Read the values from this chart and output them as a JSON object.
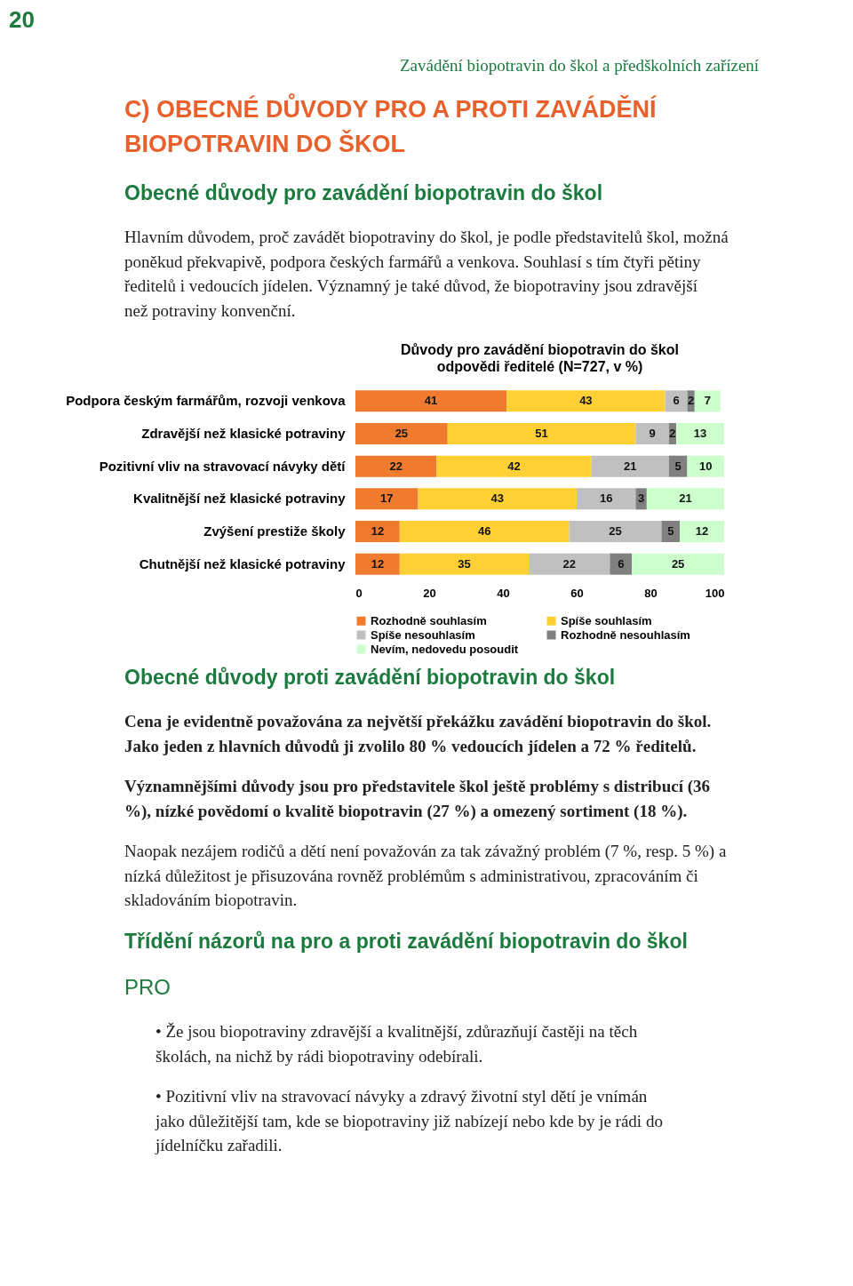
{
  "chart_data": {
    "type": "bar",
    "orientation": "horizontal",
    "stacked": true,
    "title": "Důvody pro zavádění biopotravin do škol",
    "subtitle": "odpovědi ředitelé (N=727, v %)",
    "categories": [
      "Podpora českým farmářům, rozvoji venkova",
      "Zdravější než klasické potraviny",
      "Pozitivní vliv na stravovací návyky dětí",
      "Kvalitnější než klasické potraviny",
      "Zvýšení prestiže školy",
      "Chutnější než klasické potraviny"
    ],
    "series": [
      {
        "name": "Rozhodně souhlasím",
        "color": "#f07b2f",
        "values": [
          41,
          25,
          22,
          17,
          12,
          12
        ]
      },
      {
        "name": "Spíše souhlasím",
        "color": "#ffd035",
        "values": [
          43,
          51,
          42,
          43,
          46,
          35
        ]
      },
      {
        "name": "Spíše nesouhlasím",
        "color": "#c0c0c0",
        "values": [
          6,
          9,
          21,
          16,
          25,
          22
        ]
      },
      {
        "name": "Rozhodně nesouhlasím",
        "color": "#808080",
        "values": [
          2,
          2,
          5,
          3,
          5,
          6
        ]
      },
      {
        "name": "Nevím, nedovedu posoudit",
        "color": "#ccffcc",
        "values": [
          7,
          13,
          10,
          21,
          12,
          25
        ]
      }
    ],
    "xlim": [
      0,
      100
    ],
    "xticks": [
      0,
      20,
      40,
      60,
      80,
      100
    ],
    "grid": false,
    "legend": "bottom",
    "data_labels": true,
    "annotations": [
      "20",
      "Zavádění biopotravin do škol a předškolních zařízení",
      "C) OBECNÉ DŮVODY PRO A PROTI ZAVÁDĚNÍ BIOPOTRAVIN DO ŠKOL",
      "Obecné důvody pro zavádění biopotravin do škol",
      "Hlavním důvodem, proč zavádět biopotraviny do škol, je podle představitelů škol, možná poněkud překvapivě, podpora českých farmářů a venkova. Souhlasí s tím čtyři pětiny ředitelů i vedoucích jídelen. Významný je také důvod, že biopotraviny jsou zdravější než potraviny konvenční.",
      "Obecné důvody proti zavádění biopotravin do škol",
      "Cena je evidentně považována za největší překážku zavádění biopotravin do škol. Jako jeden z hlavních důvodů ji zvolilo 80 % vedoucích jídelen a 72 % ředitelů.",
      "Významnějšími důvody jsou pro představitele škol ještě problémy s distribucí (36 %), nízké povědomí o kvalitě biopotravin (27 %) a omezený sortiment (18 %).",
      "Naopak nezájem rodičů a dětí není považován za tak závažný problém (7 %, resp. 5 %) a nízká důležitost je přisuzována rovněž problémům s administrativou, zpracováním či skladováním biopotravin.",
      "Třídění názorů na pro a proti zavádění biopotravin do škol",
      "PRO",
      "• Že jsou biopotraviny zdravější a kvalitnější, zdůrazňují častěji na těch školách, na nichž by rádi biopotraviny odebírali.",
      "• Pozitivní vliv na stravovací návyky a zdravý životní styl dětí je vnímán jako důležitější tam, kde se biopotraviny již nabízejí nebo kde by je rádi do jídelníčku zařadili."
    ]
  }
}
